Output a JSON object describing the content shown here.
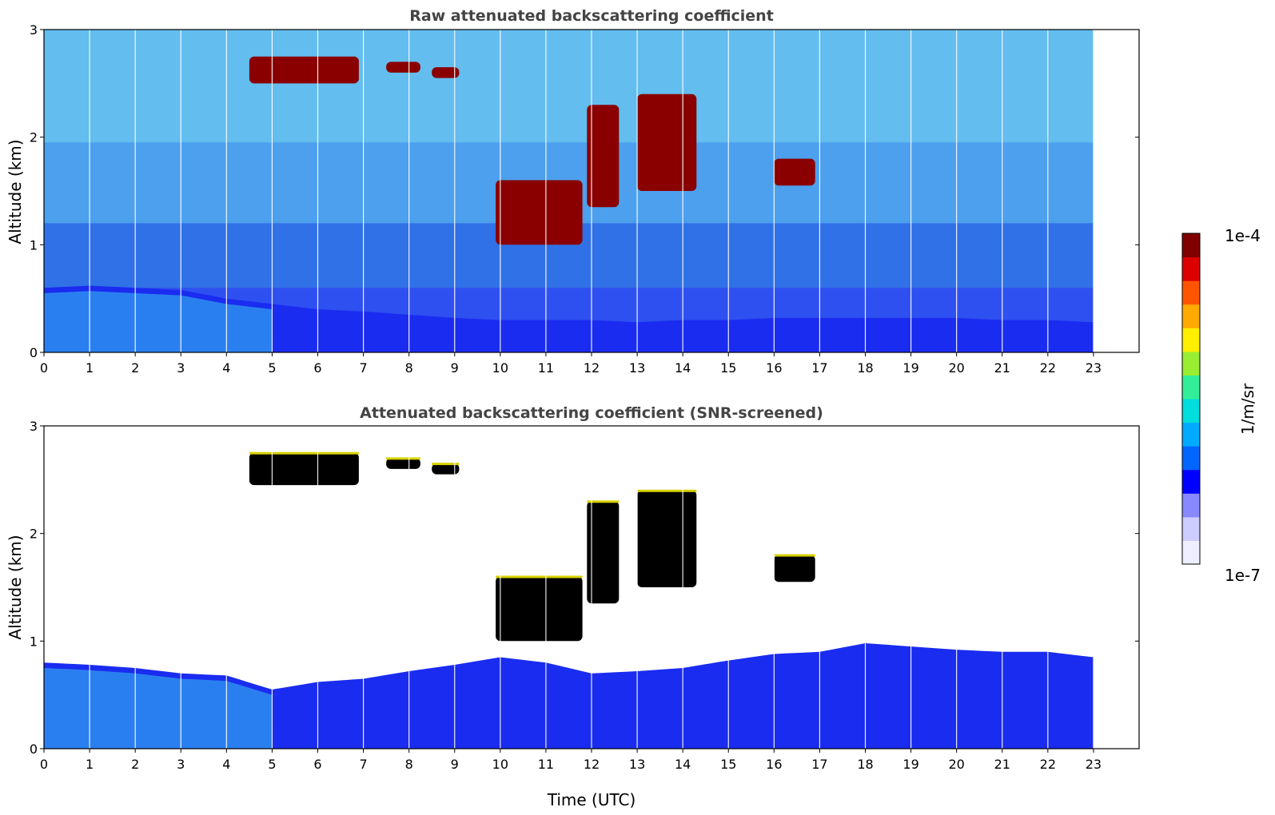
{
  "chart_data": [
    {
      "type": "heatmap",
      "title": "Raw attenuated backscattering coefficient",
      "xlabel": "",
      "ylabel": "Altitude (km)",
      "xlim": [
        0,
        24
      ],
      "ylim": [
        0,
        3
      ],
      "x_ticks": [
        "0",
        "1",
        "2",
        "3",
        "4",
        "5",
        "6",
        "7",
        "8",
        "9",
        "10",
        "11",
        "12",
        "13",
        "14",
        "15",
        "16",
        "17",
        "18",
        "19",
        "20",
        "21",
        "22",
        "23"
      ],
      "y_ticks": [
        "0",
        "1",
        "2",
        "3"
      ],
      "data_extent_hours": [
        0,
        23
      ],
      "aerosol_layer_top_km": [
        [
          0,
          0.6
        ],
        [
          1,
          0.62
        ],
        [
          2,
          0.6
        ],
        [
          3,
          0.58
        ],
        [
          4,
          0.5
        ],
        [
          5,
          0.45
        ],
        [
          6,
          0.4
        ],
        [
          7,
          0.38
        ],
        [
          8,
          0.35
        ],
        [
          9,
          0.32
        ],
        [
          10,
          0.3
        ],
        [
          11,
          0.3
        ],
        [
          12,
          0.3
        ],
        [
          13,
          0.28
        ],
        [
          14,
          0.3
        ],
        [
          15,
          0.3
        ],
        [
          16,
          0.32
        ],
        [
          17,
          0.32
        ],
        [
          18,
          0.32
        ],
        [
          19,
          0.32
        ],
        [
          20,
          0.32
        ],
        [
          21,
          0.3
        ],
        [
          22,
          0.3
        ],
        [
          23,
          0.28
        ]
      ],
      "cloud_features": [
        {
          "t_start": 4.5,
          "t_end": 6.9,
          "alt_bottom_km": 2.5,
          "alt_top_km": 2.75
        },
        {
          "t_start": 7.5,
          "t_end": 8.25,
          "alt_bottom_km": 2.6,
          "alt_top_km": 2.7
        },
        {
          "t_start": 8.5,
          "t_end": 9.1,
          "alt_bottom_km": 2.55,
          "alt_top_km": 2.65
        },
        {
          "t_start": 9.9,
          "t_end": 11.8,
          "alt_bottom_km": 1.0,
          "alt_top_km": 1.6
        },
        {
          "t_start": 11.9,
          "t_end": 12.6,
          "alt_bottom_km": 1.35,
          "alt_top_km": 2.3
        },
        {
          "t_start": 13.0,
          "t_end": 14.3,
          "alt_bottom_km": 1.5,
          "alt_top_km": 2.4
        },
        {
          "t_start": 16.0,
          "t_end": 16.9,
          "alt_bottom_km": 1.55,
          "alt_top_km": 1.8
        }
      ]
    },
    {
      "type": "heatmap",
      "title": "Attenuated backscattering coefficient (SNR-screened)",
      "xlabel": "Time (UTC)",
      "ylabel": "Altitude (km)",
      "xlim": [
        0,
        24
      ],
      "ylim": [
        0,
        3
      ],
      "x_ticks": [
        "0",
        "1",
        "2",
        "3",
        "4",
        "5",
        "6",
        "7",
        "8",
        "9",
        "10",
        "11",
        "12",
        "13",
        "14",
        "15",
        "16",
        "17",
        "18",
        "19",
        "20",
        "21",
        "22",
        "23"
      ],
      "y_ticks": [
        "0",
        "1",
        "2",
        "3"
      ],
      "data_extent_hours": [
        0,
        23
      ],
      "aerosol_layer_top_km": [
        [
          0,
          0.8
        ],
        [
          1,
          0.78
        ],
        [
          2,
          0.75
        ],
        [
          3,
          0.7
        ],
        [
          4,
          0.68
        ],
        [
          5,
          0.55
        ],
        [
          6,
          0.62
        ],
        [
          7,
          0.65
        ],
        [
          8,
          0.72
        ],
        [
          9,
          0.78
        ],
        [
          10,
          0.85
        ],
        [
          11,
          0.8
        ],
        [
          12,
          0.7
        ],
        [
          13,
          0.72
        ],
        [
          14,
          0.75
        ],
        [
          15,
          0.82
        ],
        [
          16,
          0.88
        ],
        [
          17,
          0.9
        ],
        [
          18,
          0.98
        ],
        [
          19,
          0.95
        ],
        [
          20,
          0.92
        ],
        [
          21,
          0.9
        ],
        [
          22,
          0.9
        ],
        [
          23,
          0.85
        ]
      ],
      "cloud_features": [
        {
          "t_start": 4.5,
          "t_end": 6.9,
          "alt_bottom_km": 2.45,
          "alt_top_km": 2.75
        },
        {
          "t_start": 7.5,
          "t_end": 8.25,
          "alt_bottom_km": 2.6,
          "alt_top_km": 2.7
        },
        {
          "t_start": 8.5,
          "t_end": 9.1,
          "alt_bottom_km": 2.55,
          "alt_top_km": 2.65
        },
        {
          "t_start": 9.9,
          "t_end": 11.8,
          "alt_bottom_km": 1.0,
          "alt_top_km": 1.6
        },
        {
          "t_start": 11.9,
          "t_end": 12.6,
          "alt_bottom_km": 1.35,
          "alt_top_km": 2.3
        },
        {
          "t_start": 13.0,
          "t_end": 14.3,
          "alt_bottom_km": 1.5,
          "alt_top_km": 2.4
        },
        {
          "t_start": 16.0,
          "t_end": 16.9,
          "alt_bottom_km": 1.55,
          "alt_top_km": 1.8
        }
      ]
    }
  ],
  "colorbar": {
    "label": "1/m/sr",
    "max_label": "1e-4",
    "min_label": "1e-7",
    "colors": [
      "#eeeeff",
      "#ccccff",
      "#8888ff",
      "#0000ff",
      "#0066ff",
      "#00aaff",
      "#00dddd",
      "#33ee99",
      "#99ee33",
      "#ffee00",
      "#ffaa00",
      "#ff5500",
      "#dd0000",
      "#800000"
    ]
  }
}
